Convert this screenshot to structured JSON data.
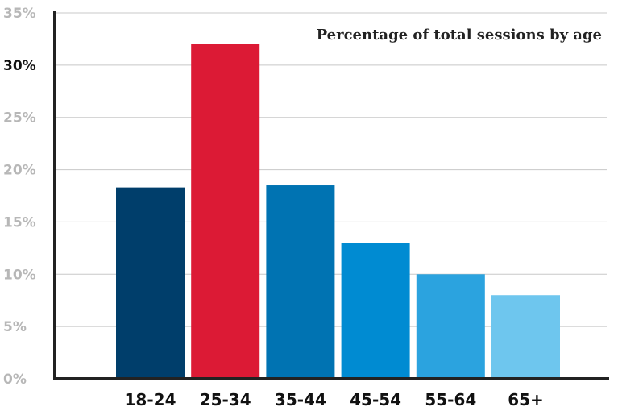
{
  "chart_data": {
    "type": "bar",
    "title": "Percentage of total sessions by age",
    "xlabel": "",
    "ylabel": "",
    "categories": [
      "18-24",
      "25-34",
      "35-44",
      "45-54",
      "55-64",
      "65+"
    ],
    "values": [
      18.3,
      32.0,
      18.5,
      13.0,
      10.0,
      8.0
    ],
    "colors": [
      "#003e6b",
      "#dc1a35",
      "#0073b2",
      "#008bd2",
      "#2ba3df",
      "#6ec6ee"
    ],
    "ylim": [
      0,
      35
    ],
    "yticks": [
      0,
      5,
      10,
      15,
      20,
      25,
      30,
      35
    ],
    "ytick_labels": [
      "0%",
      "5%",
      "10%",
      "15%",
      "20%",
      "25%",
      "30%",
      "35%"
    ],
    "highlight_ytick": "30%",
    "grid": true,
    "gridline_color": "#c8c8c8",
    "axis_color": "#222222",
    "title_position": "top-right"
  }
}
